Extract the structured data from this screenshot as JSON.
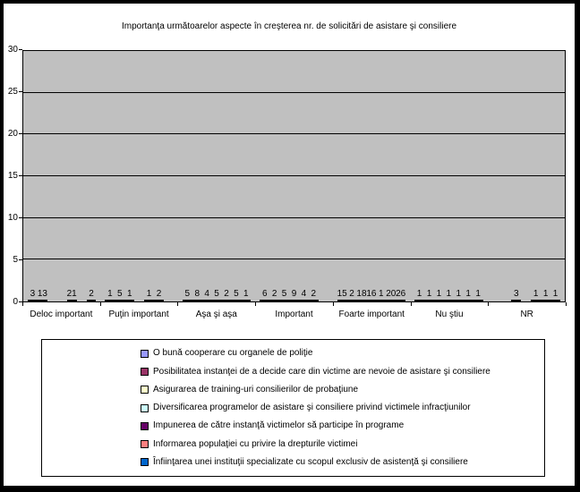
{
  "chart_data": {
    "type": "bar",
    "title": "Importanţa următoarelor aspecte în creşterea nr. de solicitări de asistare şi consiliere",
    "categories": [
      "Deloc important",
      "Puţin important",
      "Aşa şi aşa",
      "Important",
      "Foarte important",
      "Nu ştiu",
      "NR"
    ],
    "series": [
      {
        "name": "O bună cooperare cu organele de poliţie",
        "color": "#9999FF",
        "values": [
          3,
          1,
          5,
          6,
          15,
          1,
          0
        ]
      },
      {
        "name": "Posibilitatea instanţei de a decide care din victime are nevoie de asistare şi consiliere",
        "color": "#993366",
        "values": [
          13,
          5,
          8,
          2,
          2,
          1,
          0
        ]
      },
      {
        "name": "Asigurarea de training-uri consilierilor de probaţiune",
        "color": "#FFFFCC",
        "values": [
          0,
          1,
          4,
          5,
          18,
          1,
          3
        ]
      },
      {
        "name": "Diversificarea programelor de asistare şi consiliere privind victimele infracţiunilor",
        "color": "#CCFFFF",
        "values": [
          0,
          0,
          5,
          9,
          16,
          1,
          0
        ]
      },
      {
        "name": "Impunerea de către instanţă victimelor să participe în programe",
        "color": "#660066",
        "values": [
          21,
          1,
          2,
          4,
          1,
          1,
          1
        ]
      },
      {
        "name": "Informarea populaţiei cu privire la drepturile victimei",
        "color": "#FF8080",
        "values": [
          0,
          2,
          5,
          2,
          20,
          1,
          1
        ]
      },
      {
        "name": "Înfiinţarea unei instituţii specializate cu scopul exclusiv de asistenţă şi consiliere",
        "color": "#0066CC",
        "values": [
          2,
          0,
          1,
          0,
          26,
          1,
          1
        ]
      }
    ],
    "ylim": [
      0,
      30
    ],
    "yticks": [
      0,
      5,
      10,
      15,
      20,
      25,
      30
    ],
    "grid": true,
    "value_labels": true,
    "legend_position": "bottom",
    "plot_bg": "#C0C0C0",
    "axis_color": "#000000"
  }
}
